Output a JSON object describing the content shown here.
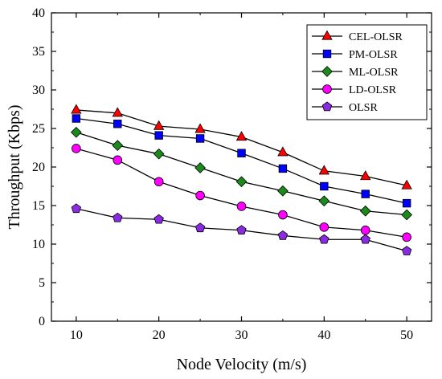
{
  "chart_data": {
    "type": "line",
    "xlabel": "Node Velocity (m/s)",
    "ylabel": "Throughput (Kbps)",
    "x": [
      10,
      15,
      20,
      25,
      30,
      35,
      40,
      45,
      50
    ],
    "xlim": [
      7,
      53
    ],
    "ylim": [
      0,
      40
    ],
    "xticks": [
      10,
      20,
      30,
      40,
      50
    ],
    "yticks": [
      0,
      5,
      10,
      15,
      20,
      25,
      30,
      35,
      40
    ],
    "grid": false,
    "legend_position": "top-right",
    "series": [
      {
        "name": "CEL-OLSR",
        "marker": "triangle",
        "color": "#ff0000",
        "values": [
          27.4,
          27.0,
          25.3,
          24.9,
          23.9,
          21.9,
          19.5,
          18.8,
          17.6
        ]
      },
      {
        "name": "PM-OLSR",
        "marker": "square",
        "color": "#0000ff",
        "values": [
          26.3,
          25.6,
          24.1,
          23.7,
          21.8,
          19.8,
          17.5,
          16.5,
          15.3
        ]
      },
      {
        "name": "ML-OLSR",
        "marker": "diamond",
        "color": "#1a8a1a",
        "values": [
          24.5,
          22.8,
          21.7,
          19.9,
          18.1,
          16.9,
          15.6,
          14.3,
          13.8
        ]
      },
      {
        "name": "LD-OLSR",
        "marker": "circle",
        "color": "#ff00ff",
        "values": [
          22.4,
          20.9,
          18.1,
          16.3,
          14.9,
          13.8,
          12.2,
          11.8,
          10.9
        ]
      },
      {
        "name": "OLSR",
        "marker": "pentagon",
        "color": "#8a2be2",
        "values": [
          14.6,
          13.4,
          13.2,
          12.1,
          11.8,
          11.1,
          10.6,
          10.6,
          9.1
        ]
      }
    ]
  }
}
